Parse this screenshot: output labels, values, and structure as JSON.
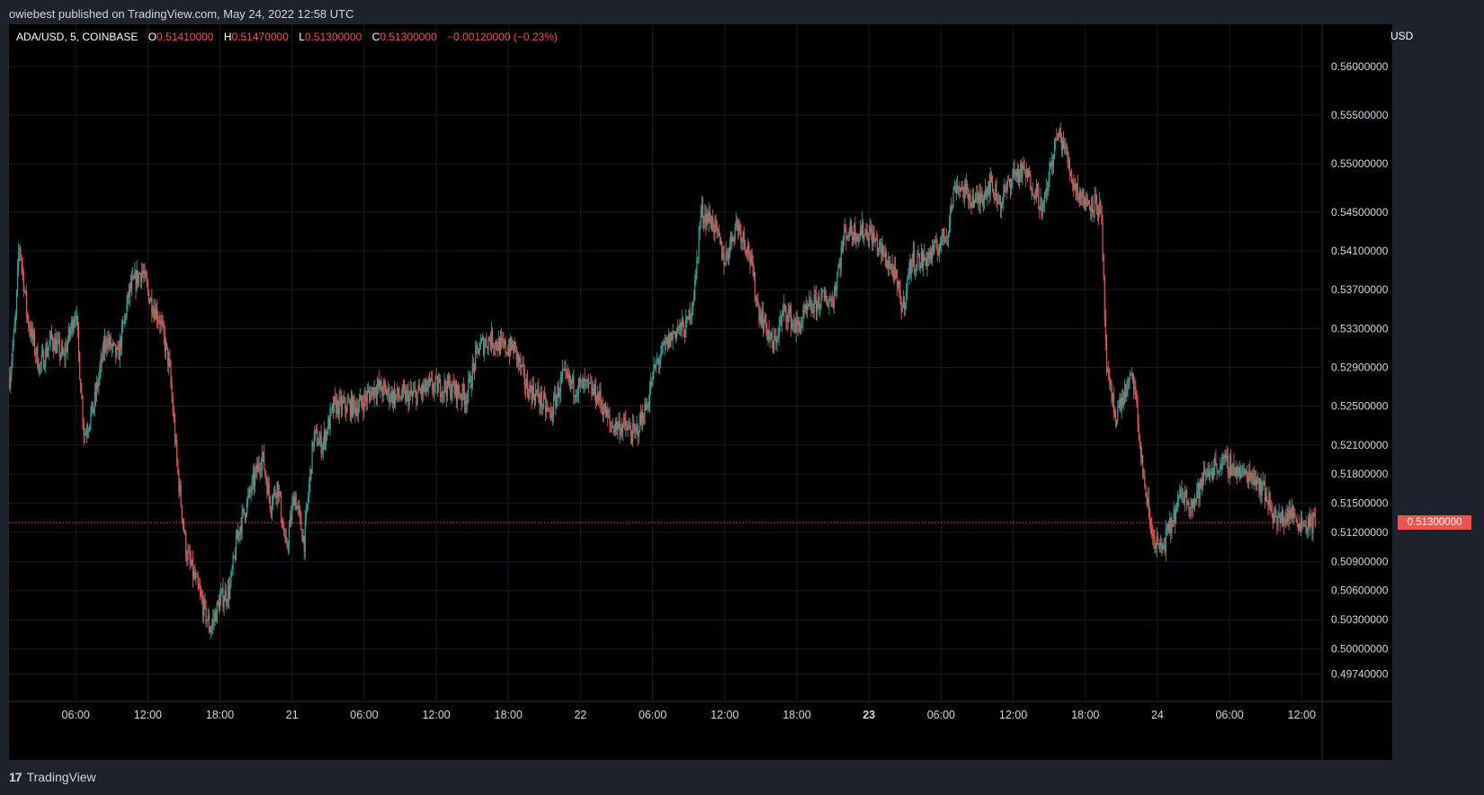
{
  "header": {
    "published": "owiebest published on TradingView.com, May 24, 2022 12:58 UTC"
  },
  "legend": {
    "symbol": "ADA/USD, 5, COINBASE",
    "o_label": "O",
    "o_value": "0.51410000",
    "h_label": "H",
    "h_value": "0.51470000",
    "l_label": "L",
    "l_value": "0.51300000",
    "c_label": "C",
    "c_value": "0.51300000",
    "change": "−0.00120000 (−0.23%)"
  },
  "currency": "USD",
  "last_price": "0.51300000",
  "footer": {
    "logo_mark": "17",
    "brand": "TradingView"
  },
  "colors": {
    "up": "#26a69a",
    "down": "#ef5350",
    "background": "#000000",
    "frame": "#1e222d",
    "grid": "#161a22",
    "text": "#d1d4dc"
  },
  "chart_data": {
    "type": "candlestick",
    "symbol": "ADA/USD",
    "interval": "5",
    "exchange": "COINBASE",
    "currency": "USD",
    "grid": true,
    "ylim": [
      0.4955,
      0.5625
    ],
    "y_ticks": [
      {
        "v": 0.56,
        "label": "0.56000000"
      },
      {
        "v": 0.555,
        "label": "0.55500000"
      },
      {
        "v": 0.55,
        "label": "0.55000000"
      },
      {
        "v": 0.545,
        "label": "0.54500000"
      },
      {
        "v": 0.541,
        "label": "0.54100000"
      },
      {
        "v": 0.537,
        "label": "0.53700000"
      },
      {
        "v": 0.533,
        "label": "0.53300000"
      },
      {
        "v": 0.529,
        "label": "0.52900000"
      },
      {
        "v": 0.525,
        "label": "0.52500000"
      },
      {
        "v": 0.521,
        "label": "0.52100000"
      },
      {
        "v": 0.518,
        "label": "0.51800000"
      },
      {
        "v": 0.515,
        "label": "0.51500000"
      },
      {
        "v": 0.512,
        "label": "0.51200000"
      },
      {
        "v": 0.509,
        "label": "0.50900000"
      },
      {
        "v": 0.506,
        "label": "0.50600000"
      },
      {
        "v": 0.503,
        "label": "0.50300000"
      },
      {
        "v": 0.5,
        "label": "0.50000000"
      },
      {
        "v": 0.4974,
        "label": "0.49740000"
      }
    ],
    "x_ticks": [
      {
        "t": 6,
        "label": "06:00",
        "bold": false
      },
      {
        "t": 12,
        "label": "12:00",
        "bold": false
      },
      {
        "t": 18,
        "label": "18:00",
        "bold": false
      },
      {
        "t": 24,
        "label": "21",
        "bold": false
      },
      {
        "t": 30,
        "label": "06:00",
        "bold": false
      },
      {
        "t": 36,
        "label": "12:00",
        "bold": false
      },
      {
        "t": 42,
        "label": "18:00",
        "bold": false
      },
      {
        "t": 48,
        "label": "22",
        "bold": false
      },
      {
        "t": 54,
        "label": "06:00",
        "bold": false
      },
      {
        "t": 60,
        "label": "12:00",
        "bold": false
      },
      {
        "t": 66,
        "label": "18:00",
        "bold": false
      },
      {
        "t": 72,
        "label": "23",
        "bold": true
      },
      {
        "t": 78,
        "label": "06:00",
        "bold": false
      },
      {
        "t": 84,
        "label": "12:00",
        "bold": false
      },
      {
        "t": 90,
        "label": "18:00",
        "bold": false
      },
      {
        "t": 96,
        "label": "24",
        "bold": false
      },
      {
        "t": 102,
        "label": "06:00",
        "bold": false
      },
      {
        "t": 108,
        "label": "12:00",
        "bold": false
      }
    ],
    "x_range": [
      0.45,
      109.7
    ],
    "price_path": [
      [
        0.5,
        0.528
      ],
      [
        1.0,
        0.534
      ],
      [
        1.3,
        0.542
      ],
      [
        2.0,
        0.534
      ],
      [
        3.0,
        0.529
      ],
      [
        4.0,
        0.532
      ],
      [
        5.0,
        0.53
      ],
      [
        6.0,
        0.535
      ],
      [
        6.7,
        0.522
      ],
      [
        7.5,
        0.525
      ],
      [
        8.5,
        0.532
      ],
      [
        9.5,
        0.53
      ],
      [
        10.5,
        0.537
      ],
      [
        11.5,
        0.539
      ],
      [
        12.2,
        0.536
      ],
      [
        13.0,
        0.534
      ],
      [
        13.8,
        0.529
      ],
      [
        14.5,
        0.518
      ],
      [
        15.2,
        0.51
      ],
      [
        16.2,
        0.506
      ],
      [
        17.2,
        0.502
      ],
      [
        18.0,
        0.505
      ],
      [
        18.8,
        0.506
      ],
      [
        19.5,
        0.512
      ],
      [
        20.5,
        0.516
      ],
      [
        21.5,
        0.52
      ],
      [
        22.2,
        0.515
      ],
      [
        22.8,
        0.517
      ],
      [
        23.5,
        0.51
      ],
      [
        24.2,
        0.516
      ],
      [
        25.0,
        0.511
      ],
      [
        25.8,
        0.522
      ],
      [
        26.5,
        0.521
      ],
      [
        27.5,
        0.525
      ],
      [
        28.5,
        0.525
      ],
      [
        29.5,
        0.525
      ],
      [
        31.0,
        0.527
      ],
      [
        32.5,
        0.526
      ],
      [
        34.0,
        0.526
      ],
      [
        35.5,
        0.527
      ],
      [
        37.0,
        0.527
      ],
      [
        38.5,
        0.526
      ],
      [
        39.5,
        0.531
      ],
      [
        40.5,
        0.532
      ],
      [
        41.5,
        0.531
      ],
      [
        42.5,
        0.531
      ],
      [
        43.5,
        0.527
      ],
      [
        44.5,
        0.526
      ],
      [
        45.5,
        0.524
      ],
      [
        46.5,
        0.528
      ],
      [
        47.5,
        0.527
      ],
      [
        48.5,
        0.527
      ],
      [
        49.5,
        0.526
      ],
      [
        50.5,
        0.523
      ],
      [
        51.5,
        0.523
      ],
      [
        52.5,
        0.522
      ],
      [
        53.5,
        0.525
      ],
      [
        54.2,
        0.529
      ],
      [
        55.0,
        0.531
      ],
      [
        56.0,
        0.533
      ],
      [
        56.8,
        0.533
      ],
      [
        57.5,
        0.537
      ],
      [
        58.0,
        0.545
      ],
      [
        59.0,
        0.544
      ],
      [
        60.0,
        0.54
      ],
      [
        61.0,
        0.544
      ],
      [
        62.0,
        0.541
      ],
      [
        62.8,
        0.535
      ],
      [
        63.5,
        0.533
      ],
      [
        64.0,
        0.531
      ],
      [
        65.0,
        0.535
      ],
      [
        66.0,
        0.533
      ],
      [
        67.0,
        0.535
      ],
      [
        68.0,
        0.536
      ],
      [
        69.0,
        0.536
      ],
      [
        70.0,
        0.543
      ],
      [
        71.0,
        0.543
      ],
      [
        72.0,
        0.543
      ],
      [
        73.0,
        0.541
      ],
      [
        74.0,
        0.539
      ],
      [
        74.8,
        0.535
      ],
      [
        75.5,
        0.54
      ],
      [
        76.5,
        0.54
      ],
      [
        77.5,
        0.541
      ],
      [
        78.5,
        0.543
      ],
      [
        79.2,
        0.548
      ],
      [
        80.0,
        0.547
      ],
      [
        81.0,
        0.546
      ],
      [
        82.0,
        0.548
      ],
      [
        83.0,
        0.546
      ],
      [
        84.0,
        0.549
      ],
      [
        85.0,
        0.549
      ],
      [
        86.0,
        0.547
      ],
      [
        86.5,
        0.545
      ],
      [
        87.0,
        0.549
      ],
      [
        87.7,
        0.553
      ],
      [
        88.2,
        0.552
      ],
      [
        89.0,
        0.548
      ],
      [
        90.0,
        0.546
      ],
      [
        90.8,
        0.546
      ],
      [
        91.3,
        0.545
      ],
      [
        91.8,
        0.528
      ],
      [
        92.5,
        0.524
      ],
      [
        93.5,
        0.527
      ],
      [
        94.0,
        0.528
      ],
      [
        94.7,
        0.519
      ],
      [
        95.5,
        0.512
      ],
      [
        96.3,
        0.51
      ],
      [
        97.2,
        0.513
      ],
      [
        98.0,
        0.516
      ],
      [
        99.0,
        0.515
      ],
      [
        100.0,
        0.518
      ],
      [
        101.0,
        0.519
      ],
      [
        102.0,
        0.519
      ],
      [
        103.0,
        0.518
      ],
      [
        104.0,
        0.518
      ],
      [
        105.0,
        0.516
      ],
      [
        106.0,
        0.513
      ],
      [
        107.0,
        0.514
      ],
      [
        108.0,
        0.513
      ],
      [
        109.0,
        0.513
      ]
    ],
    "last_price": 0.513
  }
}
